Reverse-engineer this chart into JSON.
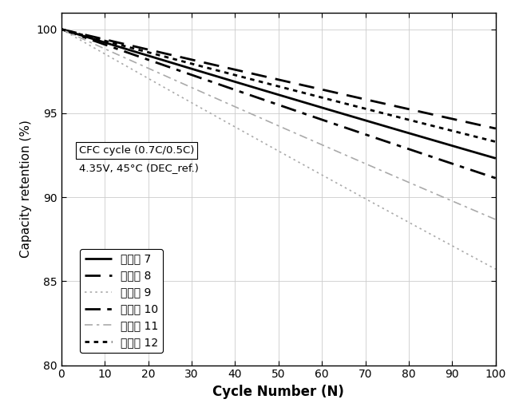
{
  "xlabel": "Cycle Number (N)",
  "ylabel": "Capacity retention (%)",
  "xlim": [
    0,
    100
  ],
  "ylim": [
    80,
    101
  ],
  "xticks": [
    0,
    10,
    20,
    30,
    40,
    50,
    60,
    70,
    80,
    90,
    100
  ],
  "yticks": [
    80,
    85,
    90,
    95,
    100
  ],
  "legend_text_line1": "CFC cycle (0.7C/0.5C)",
  "legend_text_line2": "4.35V, 45°C (DEC_ref.)",
  "series": [
    {
      "label": "実施例 7",
      "color": "#000000",
      "ls_key": "solid",
      "linewidth": 2.0,
      "rate": 0.078
    },
    {
      "label": "実施例 8",
      "color": "#000000",
      "ls_key": "dashed",
      "linewidth": 2.0,
      "rate": 0.06
    },
    {
      "label": "実施例 9",
      "color": "#aaaaaa",
      "ls_key": "dotted_gray",
      "linewidth": 1.2,
      "rate": 0.145
    },
    {
      "label": "実施例 10",
      "color": "#000000",
      "ls_key": "dashdot",
      "linewidth": 2.0,
      "rate": 0.09
    },
    {
      "label": "実施例 11",
      "color": "#aaaaaa",
      "ls_key": "dashdot_gray",
      "linewidth": 1.2,
      "rate": 0.115
    },
    {
      "label": "実施例 12",
      "color": "#000000",
      "ls_key": "dotted_black",
      "linewidth": 2.0,
      "rate": 0.068
    }
  ],
  "background_color": "#ffffff",
  "grid_color": "#cccccc"
}
